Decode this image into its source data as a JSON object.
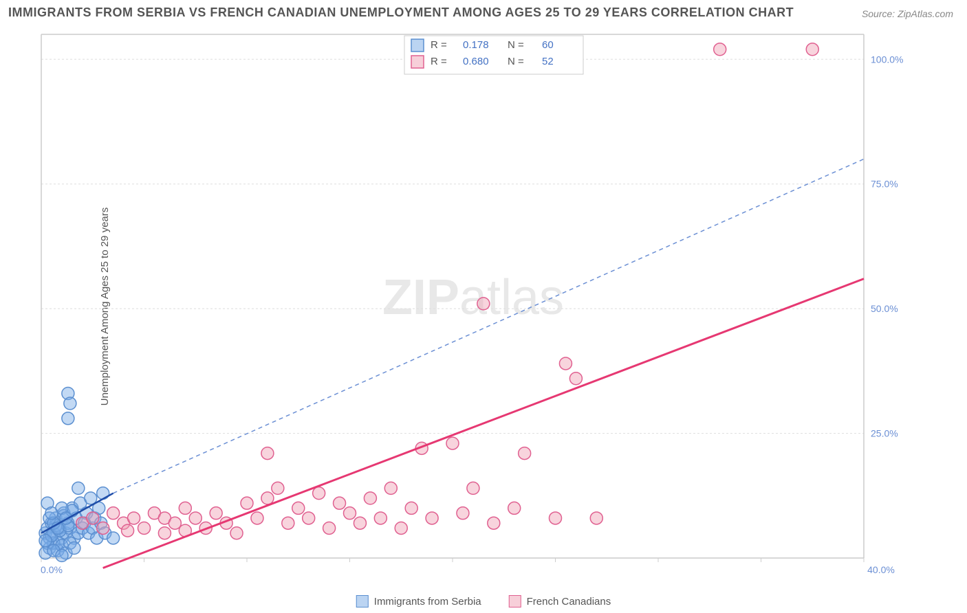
{
  "title": "IMMIGRANTS FROM SERBIA VS FRENCH CANADIAN UNEMPLOYMENT AMONG AGES 25 TO 29 YEARS CORRELATION CHART",
  "source_label": "Source:",
  "source_value": "ZipAtlas.com",
  "ylabel": "Unemployment Among Ages 25 to 29 years",
  "watermark_bold": "ZIP",
  "watermark_rest": "atlas",
  "chart": {
    "type": "scatter",
    "xlim": [
      0,
      40
    ],
    "ylim": [
      0,
      105
    ],
    "x_ticks": [
      0,
      5,
      10,
      15,
      20,
      25,
      30,
      35,
      40
    ],
    "x_tick_labels": {
      "0": "0.0%",
      "40": "40.0%"
    },
    "y_ticks": [
      25,
      50,
      75,
      100
    ],
    "y_tick_labels": {
      "25": "25.0%",
      "50": "50.0%",
      "75": "75.0%",
      "100": "100.0%"
    },
    "grid_color": "#dddddd",
    "axis_color": "#cccccc",
    "background_color": "#ffffff",
    "marker_radius": 9,
    "marker_stroke_width": 1.5,
    "series": [
      {
        "name": "Immigrants from Serbia",
        "color_fill": "rgba(120,170,230,0.45)",
        "color_stroke": "#5b8fd0",
        "R": "0.178",
        "N": "60",
        "trend": {
          "x1": 0,
          "y1": 5,
          "x2": 3.5,
          "y2": 13,
          "dashed": false,
          "stroke": "#1f4da8",
          "width": 2.5
        },
        "trend_ext": {
          "x1": 3.5,
          "y1": 13,
          "x2": 40,
          "y2": 80,
          "dashed": true,
          "stroke": "#6b8fd4",
          "width": 1.5
        },
        "points": [
          [
            0.2,
            5
          ],
          [
            0.3,
            6
          ],
          [
            0.4,
            4
          ],
          [
            0.5,
            7
          ],
          [
            0.6,
            5
          ],
          [
            0.7,
            8
          ],
          [
            0.8,
            3
          ],
          [
            0.9,
            6
          ],
          [
            1.0,
            4
          ],
          [
            1.1,
            9
          ],
          [
            1.2,
            5
          ],
          [
            1.3,
            7
          ],
          [
            1.4,
            6
          ],
          [
            1.5,
            10
          ],
          [
            1.6,
            4
          ],
          [
            1.7,
            8
          ],
          [
            1.8,
            5
          ],
          [
            1.9,
            11
          ],
          [
            2.0,
            6
          ],
          [
            2.1,
            7
          ],
          [
            2.2,
            9
          ],
          [
            2.3,
            5
          ],
          [
            2.4,
            12
          ],
          [
            2.5,
            6
          ],
          [
            2.6,
            8
          ],
          [
            2.7,
            4
          ],
          [
            2.8,
            10
          ],
          [
            2.9,
            7
          ],
          [
            3.0,
            13
          ],
          [
            3.1,
            5
          ],
          [
            3.5,
            4
          ],
          [
            0.4,
            2
          ],
          [
            0.6,
            3
          ],
          [
            0.8,
            1.5
          ],
          [
            1.0,
            2.5
          ],
          [
            1.2,
            1
          ],
          [
            1.4,
            3
          ],
          [
            1.6,
            2
          ],
          [
            1.8,
            14
          ],
          [
            0.3,
            3
          ],
          [
            0.5,
            4.5
          ],
          [
            0.7,
            6.5
          ],
          [
            0.9,
            5.5
          ],
          [
            1.1,
            8.5
          ],
          [
            1.3,
            6.5
          ],
          [
            1.5,
            9.5
          ],
          [
            0.2,
            3.5
          ],
          [
            0.4,
            8
          ],
          [
            0.6,
            7
          ],
          [
            0.8,
            6
          ],
          [
            1.0,
            10
          ],
          [
            1.2,
            8
          ],
          [
            0.3,
            11
          ],
          [
            0.5,
            9
          ],
          [
            1.3,
            33
          ],
          [
            1.4,
            31
          ],
          [
            1.3,
            28
          ],
          [
            0.2,
            1
          ],
          [
            0.6,
            1.5
          ],
          [
            1.0,
            0.5
          ]
        ]
      },
      {
        "name": "French Canadians",
        "color_fill": "rgba(240,160,180,0.45)",
        "color_stroke": "#e06090",
        "R": "0.680",
        "N": "52",
        "trend": {
          "x1": 3,
          "y1": -2,
          "x2": 40,
          "y2": 56,
          "dashed": false,
          "stroke": "#e63872",
          "width": 3
        },
        "points": [
          [
            2.0,
            7
          ],
          [
            2.5,
            8
          ],
          [
            3.0,
            6
          ],
          [
            3.5,
            9
          ],
          [
            4.0,
            7
          ],
          [
            4.5,
            8
          ],
          [
            5.0,
            6
          ],
          [
            5.5,
            9
          ],
          [
            6.0,
            8
          ],
          [
            6.5,
            7
          ],
          [
            7.0,
            10
          ],
          [
            7.5,
            8
          ],
          [
            8.0,
            6
          ],
          [
            8.5,
            9
          ],
          [
            9.0,
            7
          ],
          [
            10.0,
            11
          ],
          [
            10.5,
            8
          ],
          [
            11.0,
            12
          ],
          [
            11.5,
            14
          ],
          [
            12.0,
            7
          ],
          [
            12.5,
            10
          ],
          [
            13.0,
            8
          ],
          [
            13.5,
            13
          ],
          [
            14.0,
            6
          ],
          [
            14.5,
            11
          ],
          [
            15.0,
            9
          ],
          [
            15.5,
            7
          ],
          [
            16.0,
            12
          ],
          [
            16.5,
            8
          ],
          [
            17.0,
            14
          ],
          [
            17.5,
            6
          ],
          [
            18.0,
            10
          ],
          [
            18.5,
            22
          ],
          [
            19.0,
            8
          ],
          [
            20.0,
            23
          ],
          [
            20.5,
            9
          ],
          [
            21.0,
            14
          ],
          [
            22.0,
            7
          ],
          [
            23.0,
            10
          ],
          [
            23.5,
            21
          ],
          [
            25.0,
            8
          ],
          [
            25.5,
            39
          ],
          [
            26.0,
            36
          ],
          [
            21.5,
            51
          ],
          [
            27.0,
            8
          ],
          [
            33.0,
            102
          ],
          [
            37.5,
            102
          ],
          [
            11.0,
            21
          ],
          [
            6.0,
            5
          ],
          [
            7.0,
            5.5
          ],
          [
            9.5,
            5
          ],
          [
            4.2,
            5.5
          ]
        ]
      }
    ]
  },
  "r_legend": {
    "R_label": "R  =",
    "N_label": "N  ="
  },
  "bottom_legend": {
    "series1_label": "Immigrants from Serbia",
    "series2_label": "French Canadians"
  }
}
